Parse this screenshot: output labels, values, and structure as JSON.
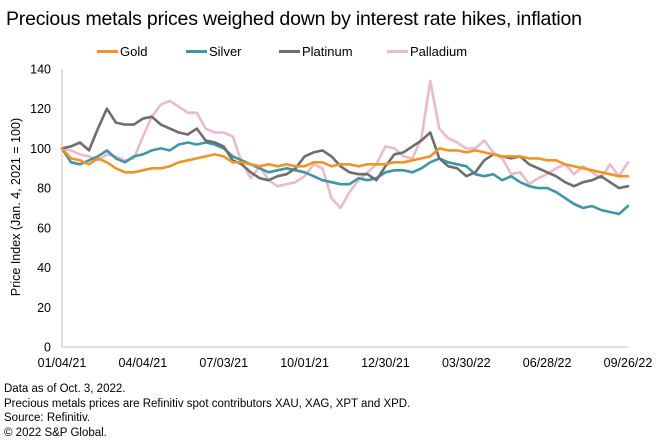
{
  "chart_data": {
    "type": "line",
    "title": "Precious metals prices weighed down by interest rate hikes, inflation",
    "xlabel": "",
    "ylabel": "Price Index (Jan. 4, 2021 = 100)",
    "ylim": [
      0,
      140
    ],
    "yticks": [
      0,
      20,
      40,
      60,
      80,
      100,
      120,
      140
    ],
    "xtick_labels": [
      "01/04/21",
      "04/04/21",
      "07/03/21",
      "10/01/21",
      "12/30/21",
      "03/30/22",
      "06/28/22",
      "09/26/22"
    ],
    "xtick_indices": [
      0,
      9,
      18,
      27,
      36,
      45,
      54,
      63
    ],
    "grid": false,
    "legend_position": "top",
    "series": [
      {
        "name": "Gold",
        "color": "#F39325",
        "values": [
          100,
          95,
          94,
          92,
          95,
          93,
          90,
          88,
          88,
          89,
          90,
          90,
          91,
          93,
          94,
          95,
          96,
          97,
          96,
          93,
          93,
          92,
          91,
          92,
          91,
          92,
          91,
          91,
          93,
          93,
          91,
          92,
          92,
          91,
          92,
          92,
          92,
          93,
          93,
          94,
          95,
          96,
          100,
          99,
          99,
          98,
          99,
          98,
          97,
          96,
          96,
          96,
          95,
          95,
          94,
          94,
          92,
          91,
          90,
          89,
          88,
          87,
          86,
          86
        ]
      },
      {
        "name": "Silver",
        "color": "#3C97AA",
        "values": [
          100,
          93,
          92,
          94,
          96,
          99,
          95,
          93,
          96,
          97,
          99,
          100,
          99,
          102,
          103,
          102,
          103,
          102,
          100,
          96,
          94,
          92,
          90,
          88,
          89,
          90,
          89,
          88,
          86,
          84,
          83,
          82,
          82,
          85,
          84,
          85,
          88,
          89,
          89,
          88,
          90,
          93,
          95,
          93,
          92,
          91,
          87,
          86,
          87,
          84,
          86,
          83,
          81,
          80,
          80,
          78,
          75,
          72,
          70,
          71,
          69,
          68,
          67,
          71
        ]
      },
      {
        "name": "Platinum",
        "color": "#6D6E70",
        "values": [
          100,
          101,
          103,
          99,
          110,
          120,
          113,
          112,
          112,
          115,
          116,
          112,
          110,
          108,
          107,
          110,
          104,
          103,
          101,
          94,
          92,
          88,
          85,
          84,
          86,
          87,
          90,
          96,
          98,
          99,
          96,
          91,
          88,
          87,
          87,
          84,
          91,
          97,
          98,
          101,
          104,
          108,
          95,
          91,
          90,
          86,
          88,
          94,
          97,
          96,
          95,
          96,
          92,
          90,
          88,
          86,
          83,
          81,
          83,
          84,
          86,
          83,
          80,
          81
        ]
      },
      {
        "name": "Palladium",
        "color": "#EDB9CC",
        "values": [
          100,
          99,
          97,
          96,
          94,
          97,
          96,
          94,
          95,
          106,
          116,
          122,
          124,
          121,
          118,
          118,
          110,
          108,
          108,
          106,
          93,
          85,
          91,
          84,
          81,
          82,
          83,
          86,
          92,
          90,
          75,
          70,
          78,
          84,
          88,
          92,
          101,
          100,
          96,
          95,
          105,
          134,
          110,
          105,
          103,
          100,
          100,
          104,
          98,
          95,
          87,
          88,
          82,
          85,
          87,
          90,
          92,
          87,
          91,
          88,
          85,
          92,
          86,
          93
        ]
      }
    ]
  },
  "notes": [
    "Data as of Oct. 3, 2022.",
    "Precious metals prices are Refinitiv spot contributors XAU, XAG, XPT and XPD.",
    "Source: Refinitiv.",
    "© 2022 S&P Global."
  ]
}
